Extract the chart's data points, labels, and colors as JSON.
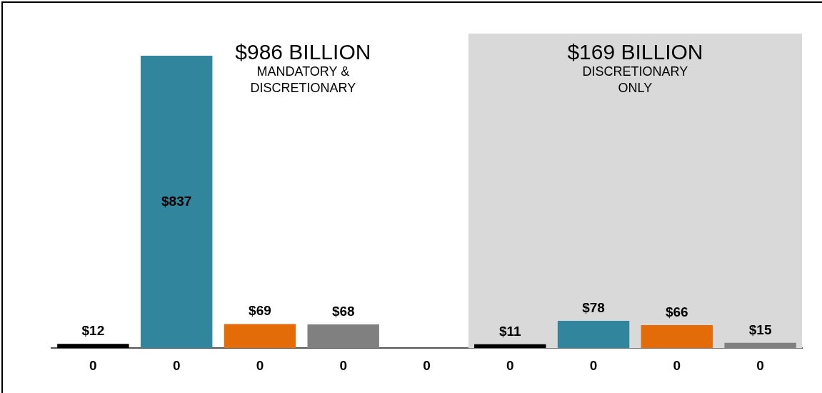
{
  "chart_data": {
    "type": "bar",
    "categories": [
      "0",
      "0",
      "0",
      "0",
      "0",
      "0",
      "0",
      "0",
      "0"
    ],
    "values": [
      12,
      837,
      69,
      68,
      null,
      11,
      78,
      66,
      15
    ],
    "colors": [
      "#000000",
      "#31859c",
      "#e36c09",
      "#808080",
      "#ffffff",
      "#000000",
      "#31859c",
      "#e36c09",
      "#808080"
    ],
    "value_labels": [
      "$12",
      "$837",
      "$69",
      "$68",
      null,
      "$11",
      "$78",
      "$66",
      "$15"
    ],
    "annotations": [
      "$986 BILLION",
      "MANDATORY & DISCRETIONARY",
      "$169 BILLION",
      "DISCRETIONARY ONLY"
    ],
    "grid": false,
    "legend": false
  }
}
